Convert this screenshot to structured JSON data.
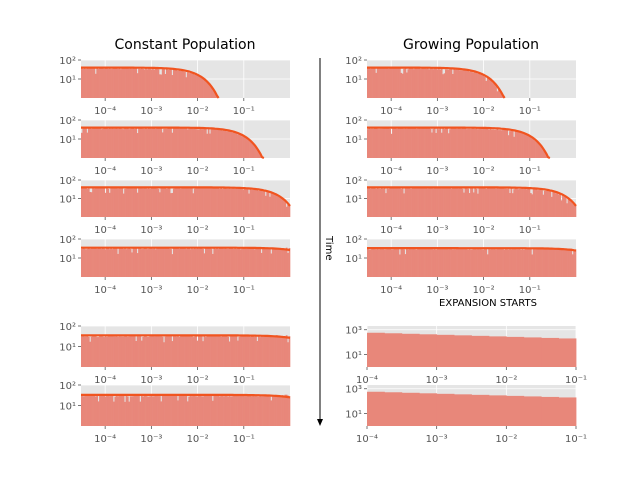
{
  "figure": {
    "left_title": "Constant Population",
    "right_title": "Growing Population",
    "time_label": "Time",
    "expansion_label": "EXPANSION STARTS"
  },
  "colors": {
    "hist_fill": "#E8877A",
    "fit_line": "#F1541F",
    "panel_bg": "#E5E5E5",
    "grid": "#FFFFFF",
    "tick_text": "#555555"
  },
  "chart_data": [
    {
      "type": "area",
      "column": "left",
      "row": 1,
      "xscale": "log",
      "yscale": "log",
      "xlim": [
        3e-05,
        1
      ],
      "ylim": [
        1,
        100
      ],
      "x_tick_labels": [
        "10⁻⁴",
        "10⁻³",
        "10⁻²",
        "10⁻¹"
      ],
      "y_tick_labels": [
        "10¹",
        "10²"
      ],
      "plateau": 40,
      "cutoff": 0.011,
      "fit_curve": true
    },
    {
      "type": "area",
      "column": "left",
      "row": 2,
      "xscale": "log",
      "yscale": "log",
      "xlim": [
        3e-05,
        1
      ],
      "ylim": [
        1,
        100
      ],
      "x_tick_labels": [
        "10⁻⁴",
        "10⁻³",
        "10⁻²",
        "10⁻¹"
      ],
      "y_tick_labels": [
        "10¹",
        "10²"
      ],
      "plateau": 40,
      "cutoff": 0.1,
      "fit_curve": true
    },
    {
      "type": "area",
      "column": "left",
      "row": 3,
      "xscale": "log",
      "yscale": "log",
      "xlim": [
        3e-05,
        1
      ],
      "ylim": [
        1,
        100
      ],
      "x_tick_labels": [
        "10⁻⁴",
        "10⁻³",
        "10⁻²",
        "10⁻¹"
      ],
      "y_tick_labels": [
        "10¹",
        "10²"
      ],
      "plateau": 40,
      "cutoff": 0.55,
      "fit_curve": true
    },
    {
      "type": "area",
      "column": "left",
      "row": 4,
      "xscale": "log",
      "yscale": "log",
      "xlim": [
        3e-05,
        1
      ],
      "ylim": [
        1,
        100
      ],
      "x_tick_labels": [
        "10⁻⁴",
        "10⁻³",
        "10⁻²",
        "10⁻¹"
      ],
      "y_tick_labels": [
        "10¹",
        "10²"
      ],
      "plateau": 35,
      "cutoff": null,
      "fit_curve": true
    },
    {
      "type": "area",
      "column": "left",
      "row": 5,
      "xscale": "log",
      "yscale": "log",
      "xlim": [
        3e-05,
        1
      ],
      "ylim": [
        1,
        100
      ],
      "x_tick_labels": [
        "10⁻⁴",
        "10⁻³",
        "10⁻²",
        "10⁻¹"
      ],
      "y_tick_labels": [
        "10¹",
        "10²"
      ],
      "plateau": 35,
      "cutoff": null,
      "fit_curve": true
    },
    {
      "type": "area",
      "column": "left",
      "row": 6,
      "xscale": "log",
      "yscale": "log",
      "xlim": [
        3e-05,
        1
      ],
      "ylim": [
        1,
        100
      ],
      "x_tick_labels": [
        "10⁻⁴",
        "10⁻³",
        "10⁻²",
        "10⁻¹"
      ],
      "y_tick_labels": [
        "10¹",
        "10²"
      ],
      "plateau": 33,
      "cutoff": null,
      "fit_curve": true
    },
    {
      "type": "area",
      "column": "right",
      "row": 1,
      "xscale": "log",
      "yscale": "log",
      "xlim": [
        3e-05,
        1
      ],
      "ylim": [
        1,
        100
      ],
      "x_tick_labels": [
        "10⁻⁴",
        "10⁻³",
        "10⁻²",
        "10⁻¹"
      ],
      "y_tick_labels": [
        "10¹",
        "10²"
      ],
      "plateau": 40,
      "cutoff": 0.011,
      "fit_curve": true
    },
    {
      "type": "area",
      "column": "right",
      "row": 2,
      "xscale": "log",
      "yscale": "log",
      "xlim": [
        3e-05,
        1
      ],
      "ylim": [
        1,
        100
      ],
      "x_tick_labels": [
        "10⁻⁴",
        "10⁻³",
        "10⁻²",
        "10⁻¹"
      ],
      "y_tick_labels": [
        "10¹",
        "10²"
      ],
      "plateau": 40,
      "cutoff": 0.1,
      "fit_curve": true
    },
    {
      "type": "area",
      "column": "right",
      "row": 3,
      "xscale": "log",
      "yscale": "log",
      "xlim": [
        3e-05,
        1
      ],
      "ylim": [
        1,
        100
      ],
      "x_tick_labels": [
        "10⁻⁴",
        "10⁻³",
        "10⁻²",
        "10⁻¹"
      ],
      "y_tick_labels": [
        "10¹",
        "10²"
      ],
      "plateau": 40,
      "cutoff": 0.55,
      "fit_curve": true
    },
    {
      "type": "area",
      "column": "right",
      "row": 4,
      "xscale": "log",
      "yscale": "log",
      "xlim": [
        3e-05,
        1
      ],
      "ylim": [
        1,
        100
      ],
      "x_tick_labels": [
        "10⁻⁴",
        "10⁻³",
        "10⁻²",
        "10⁻¹"
      ],
      "y_tick_labels": [
        "10¹",
        "10²"
      ],
      "plateau": 33,
      "cutoff": null,
      "fit_curve": true
    },
    {
      "type": "area",
      "column": "right",
      "row": 5,
      "xscale": "log",
      "yscale": "log",
      "xlim": [
        0.0001,
        0.1
      ],
      "ylim": [
        1,
        2000
      ],
      "x_tick_labels": [
        "10⁻⁴",
        "10⁻³",
        "10⁻²",
        "10⁻¹"
      ],
      "y_tick_labels": [
        "10¹",
        "10³"
      ],
      "values_start": 600,
      "values_end": 190,
      "fit_curve": false
    },
    {
      "type": "area",
      "column": "right",
      "row": 6,
      "xscale": "log",
      "yscale": "log",
      "xlim": [
        0.0001,
        0.1
      ],
      "ylim": [
        1,
        2000
      ],
      "x_tick_labels": [
        "10⁻⁴",
        "10⁻³",
        "10⁻²",
        "10⁻¹"
      ],
      "y_tick_labels": [
        "10¹",
        "10³"
      ],
      "values_start": 600,
      "values_end": 190,
      "fit_curve": false
    }
  ]
}
